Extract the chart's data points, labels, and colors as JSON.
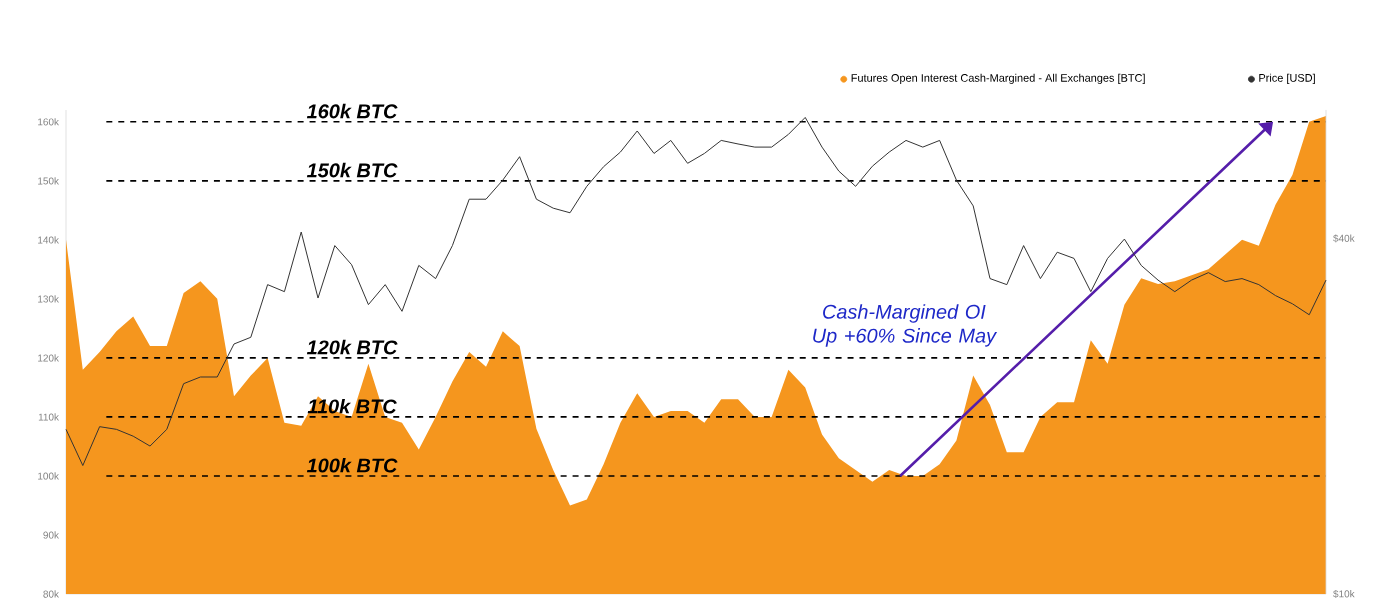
{
  "chart_data": [
    {
      "type": "area",
      "categories": [
        null,
        null,
        null,
        null,
        null,
        null,
        null,
        null,
        null,
        null,
        null,
        null,
        null,
        null,
        null,
        null,
        null,
        null,
        null,
        null,
        null,
        null,
        null,
        null,
        null,
        null,
        null,
        null,
        null,
        null,
        null,
        null,
        null,
        null,
        null,
        null,
        null,
        null,
        null,
        null,
        null,
        null,
        null,
        null,
        null,
        null,
        null,
        null,
        null,
        null,
        null,
        null,
        null,
        null,
        null,
        null,
        null,
        null,
        null,
        null,
        null,
        null,
        null,
        null,
        null,
        null,
        null,
        null,
        null,
        null,
        null,
        null,
        null,
        null,
        null,
        null
      ],
      "ylim": [
        80000,
        162000
      ],
      "yticks": [
        {
          "value": 80000,
          "label": "80k"
        },
        {
          "value": 90000,
          "label": "90k"
        },
        {
          "value": 100000,
          "label": "100k"
        },
        {
          "value": 110000,
          "label": "110k"
        },
        {
          "value": 120000,
          "label": "120k"
        },
        {
          "value": 130000,
          "label": "130k"
        },
        {
          "value": 140000,
          "label": "140k"
        },
        {
          "value": 150000,
          "label": "150k"
        },
        {
          "value": 160000,
          "label": "160k"
        }
      ],
      "legend": "top right",
      "series": [
        {
          "name": "Futures Open Interest Cash-Margined - All Exchanges [BTC]",
          "color": "#f5961e",
          "values": [
            140000,
            118000,
            121000,
            124500,
            127000,
            122000,
            122000,
            131000,
            133000,
            130000,
            113500,
            117000,
            120000,
            109000,
            108500,
            113500,
            111000,
            110000,
            119000,
            110000,
            109000,
            104500,
            110000,
            116000,
            121000,
            118500,
            124500,
            122000,
            108000,
            101000,
            95000,
            96000,
            102000,
            109000,
            114000,
            110000,
            111000,
            111000,
            109000,
            113000,
            113000,
            110000,
            110000,
            118000,
            115000,
            107000,
            103000,
            101000,
            99000,
            101000,
            100000,
            100000,
            102000,
            106000,
            117000,
            112000,
            104000,
            104000,
            110000,
            112500,
            112500,
            123000,
            119000,
            129000,
            133500,
            132500,
            133000,
            134000,
            135000,
            137500,
            140000,
            139000,
            146000,
            151000,
            160000,
            161000
          ]
        }
      ],
      "ref_lines": [
        {
          "axis": "y",
          "value": 160000,
          "label": "160k BTC",
          "color": "#000000",
          "line_style": "dashed"
        },
        {
          "axis": "y",
          "value": 150000,
          "label": "150k BTC",
          "color": "#000000",
          "line_style": "dashed"
        },
        {
          "axis": "y",
          "value": 120000,
          "label": "120k BTC",
          "color": "#000000",
          "line_style": "dashed"
        },
        {
          "axis": "y",
          "value": 110000,
          "label": "110k BTC",
          "color": "#000000",
          "line_style": "dashed"
        },
        {
          "axis": "y",
          "value": 100000,
          "label": "100k BTC",
          "color": "#000000",
          "line_style": "dashed"
        }
      ],
      "annotations": [
        "Cash-Margined OI Up +60% Since May"
      ]
    },
    {
      "type": "line",
      "categories": [
        null,
        null,
        null,
        null,
        null,
        null,
        null,
        null,
        null,
        null,
        null,
        null,
        null,
        null,
        null,
        null,
        null,
        null,
        null,
        null,
        null,
        null,
        null,
        null,
        null,
        null,
        null,
        null,
        null,
        null,
        null,
        null,
        null,
        null,
        null,
        null,
        null,
        null,
        null,
        null,
        null,
        null,
        null,
        null,
        null,
        null,
        null,
        null,
        null,
        null,
        null,
        null,
        null,
        null,
        null,
        null,
        null,
        null,
        null,
        null,
        null,
        null,
        null,
        null,
        null,
        null,
        null,
        null,
        null,
        null,
        null,
        null,
        null,
        null,
        null,
        null
      ],
      "ylim": [
        10000,
        66000
      ],
      "yticks": [
        {
          "value": 10000,
          "label": "$10k"
        },
        {
          "value": 40000,
          "label": "$40k"
        }
      ],
      "log": true,
      "legend": "top right",
      "line_style": "solid",
      "series": [
        {
          "name": "Price [USD]",
          "color": "#333333",
          "values": [
            19000,
            16500,
            19200,
            19000,
            18500,
            17800,
            19000,
            22700,
            23300,
            23300,
            26500,
            27200,
            33400,
            32500,
            41000,
            31700,
            38900,
            36100,
            30900,
            33400,
            30100,
            36000,
            34200,
            38900,
            46600,
            46600,
            50200,
            55000,
            46600,
            45000,
            44200,
            49000,
            52900,
            56000,
            60800,
            55700,
            58600,
            53600,
            55700,
            58600,
            57800,
            57100,
            57100,
            60000,
            64100,
            57100,
            52000,
            49000,
            53000,
            56000,
            58600,
            57100,
            58600,
            50200,
            45400,
            34200,
            33400,
            38900,
            34200,
            37900,
            37000,
            32500,
            37000,
            39900,
            36000,
            34000,
            32500,
            34000,
            35000,
            33800,
            34200,
            33400,
            32000,
            31000,
            29700,
            34000
          ]
        }
      ]
    }
  ]
}
